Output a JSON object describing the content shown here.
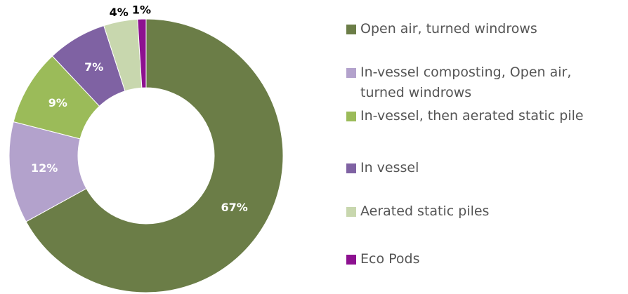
{
  "chart_data": {
    "type": "donut",
    "categories": [
      "Open air, turned windrows",
      "In-vessel composting, Open air, turned windrows",
      "In-vessel, then aerated static pile",
      "In vessel",
      "Aerated static piles",
      "Eco Pods"
    ],
    "values": [
      67,
      12,
      9,
      7,
      4,
      1
    ],
    "value_labels": [
      "67%",
      "12%",
      "9%",
      "7%",
      "4%",
      "1%"
    ],
    "colors": [
      "#6b7d47",
      "#b3a2cc",
      "#9bbb59",
      "#7f62a3",
      "#c8d7ae",
      "#8d1190"
    ],
    "legend": "right"
  }
}
